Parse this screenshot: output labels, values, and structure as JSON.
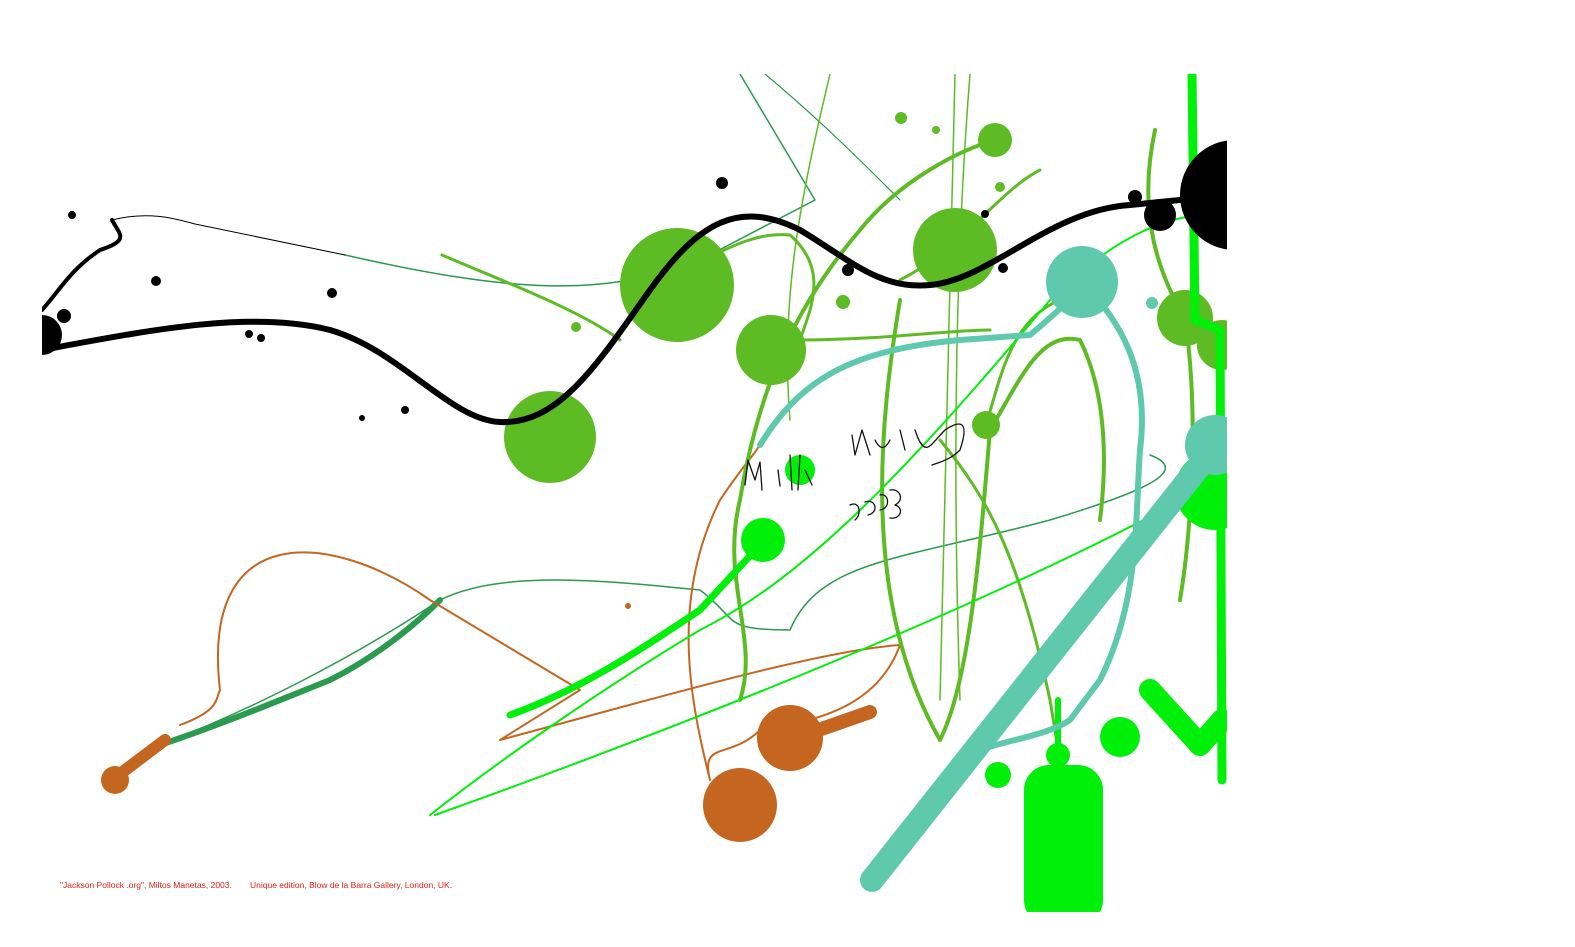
{
  "caption": {
    "title": "\"Jackson Pollock .org\",  Miltos Manetas, 2003.",
    "edition": "Unique edition, Blow de la Barra Gallery, London, UK."
  }
}
